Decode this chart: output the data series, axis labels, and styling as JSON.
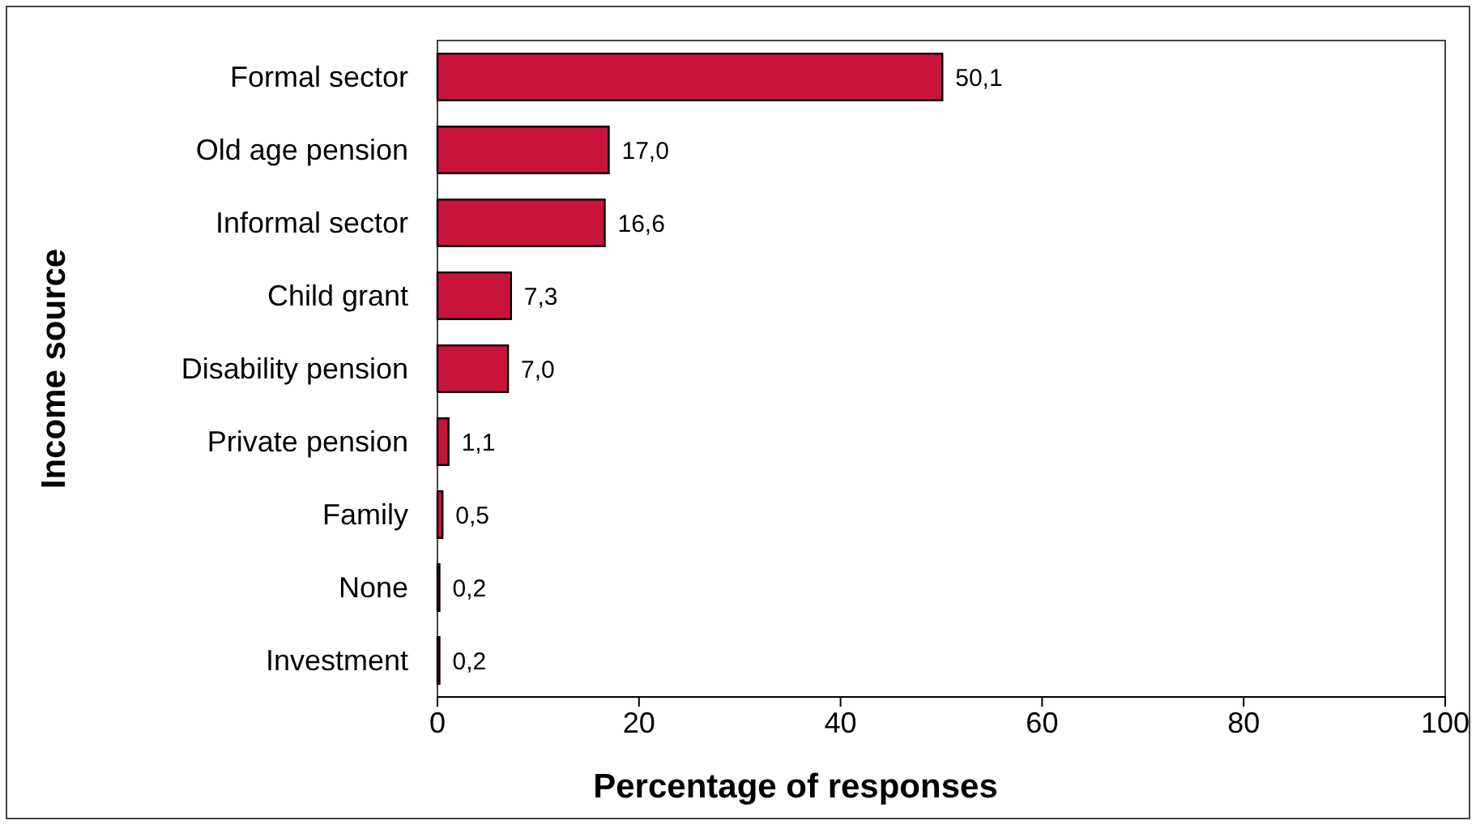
{
  "chart_data": {
    "type": "bar",
    "orientation": "horizontal",
    "xlabel": "Percentage of responses",
    "ylabel": "Income source",
    "categories": [
      "Formal sector",
      "Old age pension",
      "Informal sector",
      "Child grant",
      "Disability pension",
      "Private pension",
      "Family",
      "None",
      "Investment"
    ],
    "values": [
      50.1,
      17.0,
      16.6,
      7.3,
      7.0,
      1.1,
      0.5,
      0.2,
      0.2
    ],
    "value_labels": [
      "50,1",
      "17,0",
      "16,6",
      "7,3",
      "7,0",
      "1,1",
      "0,5",
      "0,2",
      "0,2"
    ],
    "color": "#c8143c",
    "xlim": [
      0,
      100
    ],
    "xticks": [
      0,
      20,
      40,
      60,
      80,
      100
    ],
    "grid": false
  }
}
